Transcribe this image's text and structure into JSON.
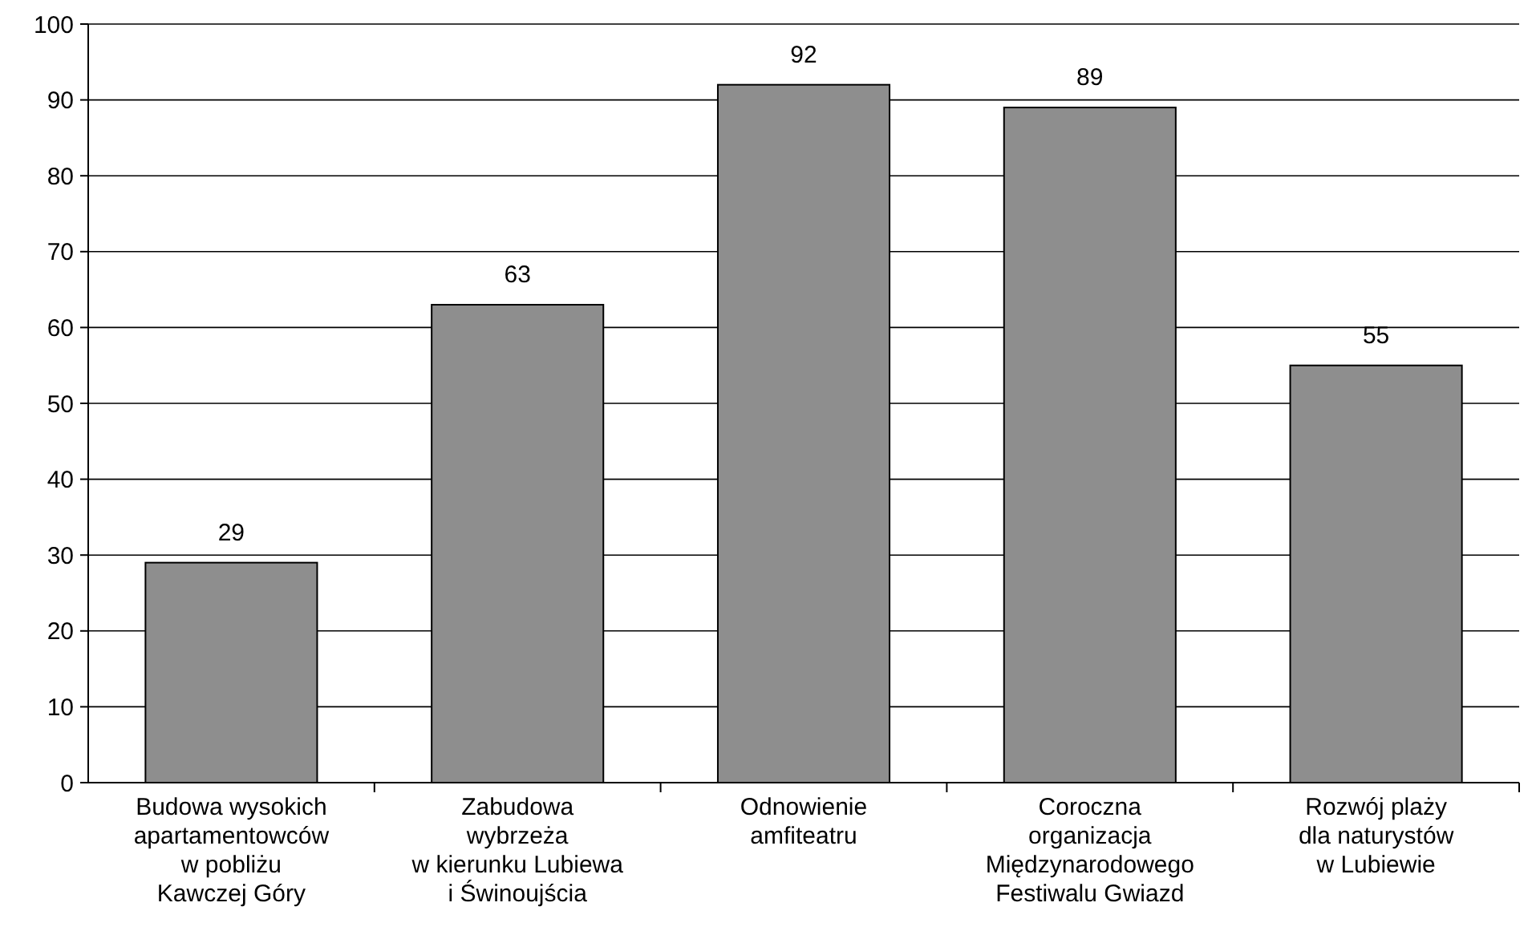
{
  "chart_data": {
    "type": "bar",
    "categories": [
      "Budowa wysokich\napartamentowców\nw pobliżu\nKawczej Góry",
      "Zabudowa\nwybrzeża\nw kierunku Lubiewa\ni Świnoujścia",
      "Odnowienie\namfiteatru",
      "Coroczna\norganizacja\nMiędzynarodowego\nFestiwalu Gwiazd",
      "Rozwój plaży\ndla naturystów\nw Lubiewie"
    ],
    "values": [
      29,
      63,
      92,
      89,
      55
    ],
    "color": "#8e8e8e",
    "ylim": [
      0,
      100
    ],
    "yticks": [
      0,
      10,
      20,
      30,
      40,
      50,
      60,
      70,
      80,
      90,
      100
    ],
    "grid": "y",
    "data_labels": true
  }
}
